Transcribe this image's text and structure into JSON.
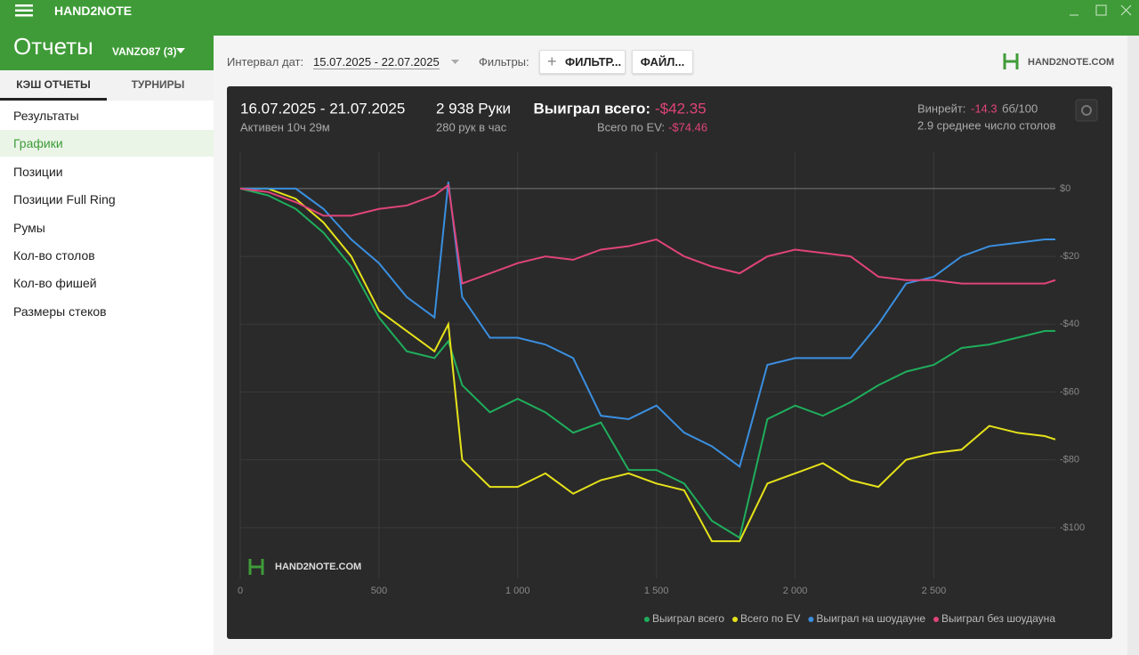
{
  "app": {
    "title": "HAND2NOTE"
  },
  "header": {
    "title": "Отчеты",
    "account": "VANZO87 (3)"
  },
  "tabs": [
    "КЭШ ОТЧЕТЫ",
    "ТУРНИРЫ"
  ],
  "menu": [
    "Результаты",
    "Графики",
    "Позиции",
    "Позиции Full Ring",
    "Румы",
    "Кол-во столов",
    "Кол-во фишей",
    "Размеры стеков"
  ],
  "toolbar": {
    "date_label": "Интервал дат:",
    "date_range": "15.07.2025 - 22.07.2025",
    "filters_label": "Фильтры:",
    "filter_button": "ФИЛЬТР...",
    "file_button": "ФАЙЛ...",
    "brand": "HAND2NOTE.COM"
  },
  "stats": {
    "period": "16.07.2025 - 21.07.2025",
    "active": "Активен 10ч 29м",
    "hands": "2 938 Руки",
    "hands_per_hour": "280 рук в час",
    "won_label": "Выиграл всего:",
    "won_value": "-$42.35",
    "ev_label": "Всего по EV:",
    "ev_value": "-$74.46",
    "winrate_label": "Винрейт:",
    "winrate_value": "-14.3",
    "winrate_unit": "бб/100",
    "tables": "2.9 среднее число столов"
  },
  "chart_data": {
    "type": "line",
    "watermark": "HAND2NOTE.COM",
    "x": [
      0,
      100,
      200,
      300,
      400,
      500,
      600,
      700,
      750,
      800,
      900,
      1000,
      1100,
      1200,
      1300,
      1400,
      1500,
      1600,
      1700,
      1800,
      1900,
      2000,
      2100,
      2200,
      2300,
      2400,
      2500,
      2600,
      2700,
      2800,
      2900,
      2938
    ],
    "series": [
      {
        "name": "Выиграл всего",
        "color": "#1fae5c",
        "values": [
          0,
          -2,
          -6,
          -13,
          -23,
          -38,
          -48,
          -50,
          -45,
          -58,
          -66,
          -62,
          -66,
          -72,
          -69,
          -83,
          -83,
          -87,
          -98,
          -103,
          -68,
          -64,
          -67,
          -63,
          -58,
          -54,
          -52,
          -47,
          -46,
          -44,
          -42,
          -42
        ]
      },
      {
        "name": "Всего по EV",
        "color": "#e6e21a",
        "values": [
          0,
          0,
          -3,
          -10,
          -20,
          -36,
          -42,
          -48,
          -40,
          -80,
          -88,
          -88,
          -84,
          -90,
          -86,
          -84,
          -87,
          -89,
          -104,
          -104,
          -87,
          -84,
          -81,
          -86,
          -88,
          -80,
          -78,
          -77,
          -70,
          -72,
          -73,
          -74
        ]
      },
      {
        "name": "Выиграл на шоудауне",
        "color": "#3a8fe0",
        "values": [
          0,
          0,
          0,
          -6,
          -15,
          -22,
          -32,
          -38,
          2,
          -32,
          -44,
          -44,
          -46,
          -50,
          -67,
          -68,
          -64,
          -72,
          -76,
          -82,
          -52,
          -50,
          -50,
          -50,
          -40,
          -28,
          -26,
          -20,
          -17,
          -16,
          -15,
          -15
        ]
      },
      {
        "name": "Выиграл без шоудауна",
        "color": "#e0447a",
        "values": [
          0,
          -1,
          -4,
          -8,
          -8,
          -6,
          -5,
          -2,
          1,
          -28,
          -25,
          -22,
          -20,
          -21,
          -18,
          -17,
          -15,
          -20,
          -23,
          -25,
          -20,
          -18,
          -19,
          -20,
          -26,
          -27,
          -27,
          -28,
          -28,
          -28,
          -28,
          -27
        ]
      }
    ],
    "xlim": [
      0,
      2938
    ],
    "xticks": [
      0,
      500,
      {
        "value": 1000,
        "label": "1 000"
      },
      {
        "value": 1500,
        "label": "1 500"
      },
      {
        "value": 2000,
        "label": "2 000"
      },
      {
        "value": 2500,
        "label": "2 500"
      }
    ],
    "ylim": [
      -115,
      11
    ],
    "yticks": [
      {
        "value": 0,
        "label": "$0"
      },
      {
        "value": -20,
        "label": "-$20"
      },
      {
        "value": -40,
        "label": "-$40"
      },
      {
        "value": -60,
        "label": "-$60"
      },
      {
        "value": -80,
        "label": "-$80"
      },
      {
        "value": -100,
        "label": "-$100"
      }
    ],
    "grid": true,
    "legend": "bottom-right"
  }
}
